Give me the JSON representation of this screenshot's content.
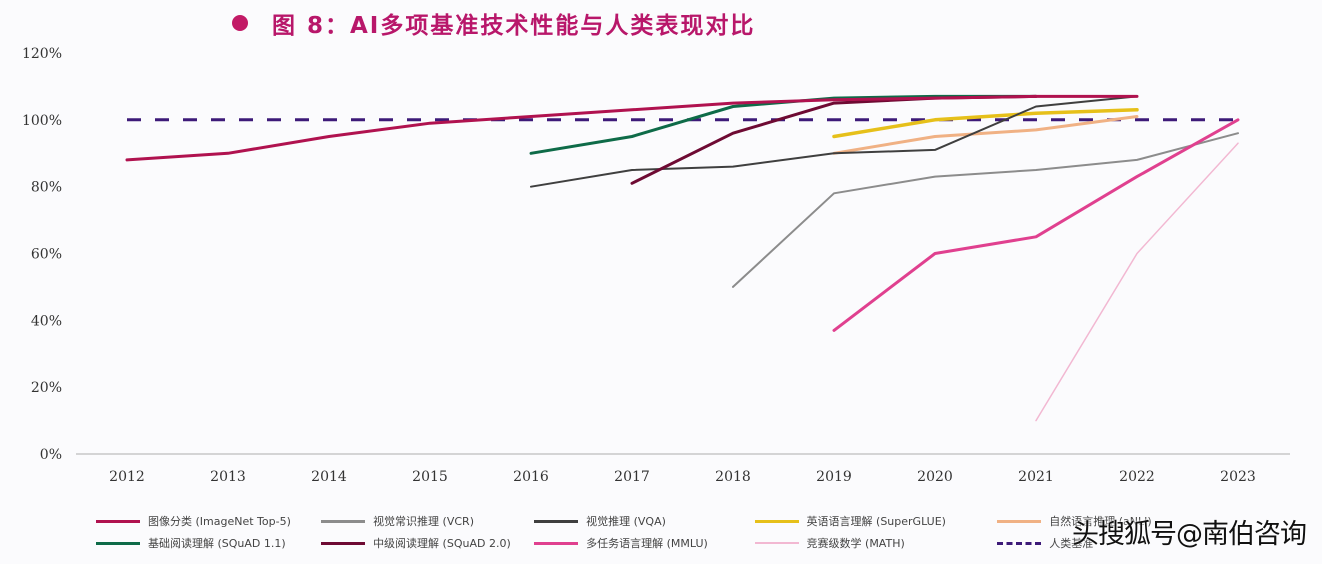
{
  "header": {
    "title": "图 8：AI多项基准技术性能与人类表现对比"
  },
  "watermark": "头搜狐号@南伯咨询",
  "chart_data": {
    "type": "line",
    "title": "图 8：AI多项基准技术性能与人类表现对比",
    "xlabel": "",
    "ylabel": "",
    "x": [
      2012,
      2013,
      2014,
      2015,
      2016,
      2017,
      2018,
      2019,
      2020,
      2021,
      2022,
      2023
    ],
    "x_tick_labels": [
      "2012",
      "2013",
      "2014",
      "2015",
      "2016",
      "2017",
      "2018",
      "2019",
      "2020",
      "2021",
      "2022",
      "2023"
    ],
    "ylim": [
      0,
      120
    ],
    "y_ticks": [
      0,
      20,
      40,
      60,
      80,
      100,
      120
    ],
    "y_tick_labels": [
      "0%",
      "20%",
      "40%",
      "60%",
      "80%",
      "100%",
      "120%"
    ],
    "grid": false,
    "legend_position": "bottom",
    "series": [
      {
        "name": "图像分类 (ImageNet Top-5)",
        "color": "#b0124f",
        "width": 3,
        "dashed": false,
        "points": [
          [
            2012,
            88
          ],
          [
            2013,
            90
          ],
          [
            2014,
            95
          ],
          [
            2015,
            99
          ],
          [
            2016,
            101
          ],
          [
            2017,
            103
          ],
          [
            2018,
            105
          ],
          [
            2019,
            106
          ],
          [
            2020,
            106.5
          ],
          [
            2021,
            107
          ],
          [
            2022,
            107
          ]
        ]
      },
      {
        "name": "视觉常识推理 (VCR)",
        "color": "#8c8c8c",
        "width": 2,
        "dashed": false,
        "points": [
          [
            2018,
            50
          ],
          [
            2019,
            78
          ],
          [
            2020,
            83
          ],
          [
            2021,
            85
          ],
          [
            2022,
            88
          ],
          [
            2023,
            96
          ]
        ]
      },
      {
        "name": "视觉推理 (VQA)",
        "color": "#3f3f3f",
        "width": 2,
        "dashed": false,
        "points": [
          [
            2016,
            80
          ],
          [
            2017,
            85
          ],
          [
            2018,
            86
          ],
          [
            2019,
            90
          ],
          [
            2020,
            91
          ],
          [
            2021,
            104
          ],
          [
            2022,
            107
          ]
        ]
      },
      {
        "name": "英语语言理解 (SuperGLUE)",
        "color": "#e6c01a",
        "width": 3.5,
        "dashed": false,
        "points": [
          [
            2019,
            95
          ],
          [
            2020,
            100
          ],
          [
            2021,
            102
          ],
          [
            2022,
            103
          ]
        ]
      },
      {
        "name": "自然语言推理 (aNLI)",
        "color": "#f0b184",
        "width": 3,
        "dashed": false,
        "points": [
          [
            2019,
            90
          ],
          [
            2020,
            95
          ],
          [
            2021,
            97
          ],
          [
            2022,
            101
          ]
        ]
      },
      {
        "name": "基础阅读理解 (SQuAD 1.1)",
        "color": "#0e6b48",
        "width": 3,
        "dashed": false,
        "points": [
          [
            2016,
            90
          ],
          [
            2017,
            95
          ],
          [
            2018,
            104
          ],
          [
            2019,
            106.5
          ],
          [
            2020,
            107
          ],
          [
            2021,
            107
          ]
        ]
      },
      {
        "name": "中级阅读理解 (SQuAD 2.0)",
        "color": "#6e0a33",
        "width": 3,
        "dashed": false,
        "points": [
          [
            2017,
            81
          ],
          [
            2018,
            96
          ],
          [
            2019,
            105
          ],
          [
            2020,
            106.5
          ],
          [
            2021,
            107
          ]
        ]
      },
      {
        "name": "多任务语言理解 (MMLU)",
        "color": "#e0408f",
        "width": 3,
        "dashed": false,
        "points": [
          [
            2019,
            37
          ],
          [
            2020,
            60
          ],
          [
            2021,
            65
          ],
          [
            2022,
            83
          ],
          [
            2023,
            100
          ]
        ]
      },
      {
        "name": "竞赛级数学 (MATH)",
        "color": "#f2b8d2",
        "width": 1.5,
        "dashed": false,
        "points": [
          [
            2021,
            10
          ],
          [
            2022,
            60
          ],
          [
            2023,
            93
          ]
        ]
      },
      {
        "name": "人类基准",
        "color": "#3d1a78",
        "width": 3,
        "dashed": true,
        "points": [
          [
            2012,
            100
          ],
          [
            2023,
            100
          ]
        ]
      }
    ]
  },
  "legend": {
    "rows": [
      [
        0,
        1,
        2,
        3,
        4
      ],
      [
        5,
        6,
        7,
        8,
        9
      ]
    ]
  }
}
